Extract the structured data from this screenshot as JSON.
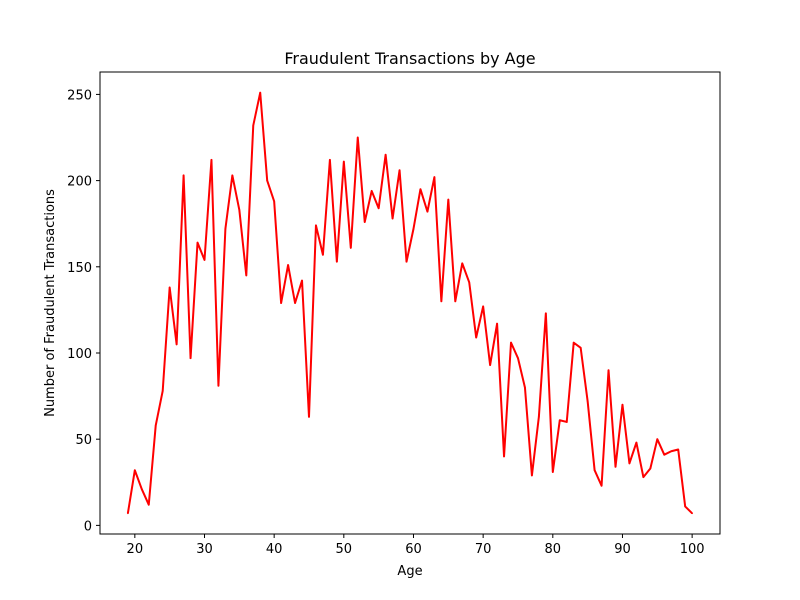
{
  "chart_data": {
    "type": "line",
    "title": "Fraudulent Transactions by Age",
    "xlabel": "Age",
    "ylabel": "Number of Fraudulent Transactions",
    "xlim": [
      15,
      104
    ],
    "ylim": [
      -5,
      263
    ],
    "xticks": [
      20,
      30,
      40,
      50,
      60,
      70,
      80,
      90,
      100
    ],
    "yticks": [
      0,
      50,
      100,
      150,
      200,
      250
    ],
    "grid": false,
    "series": [
      {
        "color": "#ff0000",
        "x": [
          19,
          20,
          21,
          22,
          23,
          24,
          25,
          26,
          27,
          28,
          29,
          30,
          31,
          32,
          33,
          34,
          35,
          36,
          37,
          38,
          39,
          40,
          41,
          42,
          43,
          44,
          45,
          46,
          47,
          48,
          49,
          50,
          51,
          52,
          53,
          54,
          55,
          56,
          57,
          58,
          59,
          60,
          61,
          62,
          63,
          64,
          65,
          66,
          67,
          68,
          69,
          70,
          71,
          72,
          73,
          74,
          75,
          76,
          77,
          78,
          79,
          80,
          81,
          82,
          83,
          84,
          85,
          86,
          87,
          88,
          89,
          90,
          91,
          92,
          93,
          94,
          95,
          96,
          97,
          98,
          99,
          100
        ],
        "values": [
          7,
          32,
          21,
          12,
          58,
          78,
          138,
          105,
          203,
          97,
          164,
          154,
          212,
          81,
          172,
          203,
          183,
          145,
          232,
          251,
          200,
          188,
          129,
          151,
          129,
          142,
          63,
          174,
          157,
          212,
          153,
          211,
          161,
          225,
          176,
          194,
          184,
          215,
          178,
          206,
          153,
          172,
          195,
          182,
          202,
          130,
          189,
          130,
          152,
          141,
          109,
          127,
          93,
          117,
          40,
          106,
          97,
          80,
          29,
          63,
          123,
          31,
          61,
          60,
          106,
          103,
          72,
          32,
          23,
          90,
          34,
          70,
          36,
          48,
          28,
          33,
          50,
          41,
          43,
          44,
          11,
          7
        ]
      }
    ]
  }
}
